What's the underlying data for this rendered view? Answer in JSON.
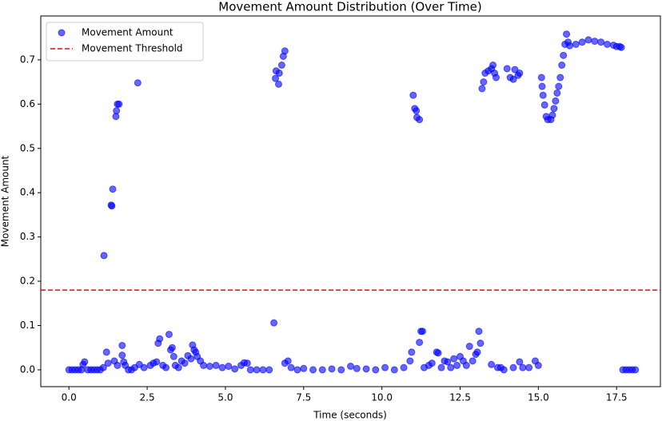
{
  "chart_data": {
    "type": "scatter",
    "title": "Movement Amount Distribution (Over Time)",
    "x_label": "Time (seconds)",
    "y_label": "Movement Amount",
    "xlim": [
      -0.9,
      18.9
    ],
    "ylim": [
      -0.038,
      0.799
    ],
    "xticks": [
      {
        "value": 0,
        "label": "0.0"
      },
      2.5,
      {
        "value": 5,
        "label": "5.0"
      },
      7.5,
      {
        "value": 10,
        "label": "10.0"
      },
      12.5,
      {
        "value": 15,
        "label": "15.0"
      },
      17.5
    ],
    "yticks": [
      {
        "value": 0,
        "label": "0.0"
      },
      0.1,
      0.2,
      0.3,
      0.4,
      0.5,
      0.6,
      0.7
    ],
    "legend": "upper left",
    "series": [
      {
        "name": "Movement Amount",
        "color": "#0000ff",
        "x": [
          0,
          0.1,
          0.2,
          0.3,
          0.4,
          0.45,
          0.5,
          0.6,
          0.7,
          0.8,
          0.9,
          1.0,
          1.1,
          1.12,
          1.2,
          1.25,
          1.35,
          1.37,
          1.4,
          1.5,
          1.52,
          1.55,
          1.6,
          1.45,
          1.55,
          1.7,
          1.7,
          1.75,
          1.8,
          1.9,
          2.0,
          2.1,
          2.2,
          2.25,
          2.4,
          2.6,
          2.7,
          2.8,
          2.85,
          2.9,
          3.0,
          3.1,
          3.2,
          3.25,
          3.3,
          3.35,
          3.4,
          3.5,
          3.6,
          3.7,
          3.8,
          3.9,
          3.95,
          4.0,
          4.05,
          4.1,
          4.2,
          4.3,
          4.5,
          4.7,
          4.9,
          5.1,
          5.3,
          5.5,
          5.6,
          5.7,
          5.8,
          6.0,
          6.2,
          6.4,
          6.55,
          6.6,
          6.62,
          6.7,
          6.72,
          6.8,
          6.85,
          6.9,
          6.9,
          7.0,
          7.1,
          7.3,
          7.5,
          7.8,
          8.1,
          8.4,
          8.7,
          9.0,
          9.2,
          9.5,
          9.8,
          10.1,
          10.4,
          10.7,
          10.9,
          10.95,
          11.0,
          11.05,
          11.1,
          11.12,
          11.2,
          11.2,
          11.25,
          11.3,
          11.35,
          11.5,
          11.6,
          11.75,
          11.8,
          11.9,
          12.0,
          12.1,
          12.2,
          12.3,
          12.4,
          12.5,
          12.6,
          12.7,
          12.8,
          12.9,
          13.0,
          13.05,
          13.1,
          13.15,
          13.2,
          13.25,
          13.3,
          13.4,
          13.5,
          13.55,
          13.6,
          13.65,
          13.5,
          13.7,
          13.8,
          13.9,
          14.0,
          14.1,
          14.2,
          14.25,
          14.35,
          14.4,
          14.2,
          14.4,
          14.5,
          14.7,
          14.9,
          15.0,
          15.1,
          15.12,
          15.15,
          15.2,
          15.25,
          15.3,
          15.4,
          15.45,
          15.5,
          15.55,
          15.6,
          15.65,
          15.7,
          15.75,
          15.8,
          15.85,
          15.9,
          15.95,
          16.0,
          16.2,
          16.4,
          16.6,
          16.8,
          17.0,
          17.2,
          17.4,
          17.5,
          17.6,
          17.65,
          17.7,
          17.8,
          17.9,
          18.0,
          18.1
        ],
        "values": [
          0,
          0,
          0,
          0,
          0,
          0.012,
          0.018,
          0,
          0,
          0,
          0,
          0,
          0.005,
          0.258,
          0.04,
          0.015,
          0.372,
          0.37,
          0.408,
          0.572,
          0.585,
          0.6,
          0.6,
          0.02,
          0.01,
          0.055,
          0.033,
          0.018,
          0.01,
          0,
          0,
          0.005,
          0.648,
          0.012,
          0.005,
          0.01,
          0.015,
          0.018,
          0.06,
          0.07,
          0.01,
          0.005,
          0.08,
          0.045,
          0.05,
          0.03,
          0.01,
          0.005,
          0.02,
          0.015,
          0.032,
          0.025,
          0.056,
          0.045,
          0.04,
          0.03,
          0.02,
          0.01,
          0.008,
          0.01,
          0.005,
          0.008,
          0.002,
          0.01,
          0.016,
          0.015,
          0,
          0,
          0,
          0,
          0.106,
          0.658,
          0.675,
          0.645,
          0.67,
          0.688,
          0.708,
          0.72,
          0.015,
          0.02,
          0.005,
          0,
          0.003,
          0,
          0,
          0.002,
          0,
          0.008,
          0.003,
          0.002,
          0,
          0.005,
          0,
          0.005,
          0.02,
          0.04,
          0.62,
          0.59,
          0.585,
          0.57,
          0.565,
          0.062,
          0.087,
          0.087,
          0.005,
          0.01,
          0.015,
          0.04,
          0.038,
          0.005,
          0.02,
          0.018,
          0.005,
          0.025,
          0.01,
          0.03,
          0.02,
          0.01,
          0.053,
          0.02,
          0.035,
          0.04,
          0.087,
          0.06,
          0.635,
          0.65,
          0.67,
          0.675,
          0.68,
          0.688,
          0.67,
          0.66,
          0.012,
          0.005,
          0.005,
          0,
          0.68,
          0.66,
          0.656,
          0.678,
          0.665,
          0.67,
          0.005,
          0.018,
          0.005,
          0.005,
          0.02,
          0.01,
          0.66,
          0.64,
          0.62,
          0.598,
          0.572,
          0.565,
          0.565,
          0.575,
          0.59,
          0.607,
          0.625,
          0.64,
          0.66,
          0.688,
          0.71,
          0.735,
          0.758,
          0.74,
          0.732,
          0.735,
          0.74,
          0.745,
          0.742,
          0.74,
          0.735,
          0.733,
          0.73,
          0.73,
          0.728,
          0,
          0,
          0,
          0,
          0
        ]
      }
    ],
    "hlines": [
      {
        "name": "Movement Threshold",
        "value": 0.18,
        "color": "#ff0000",
        "style": "dashed"
      }
    ]
  }
}
